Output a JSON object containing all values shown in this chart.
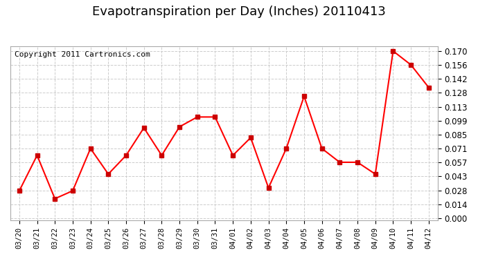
{
  "title": "Evapotranspiration per Day (Inches) 20110413",
  "copyright": "Copyright 2011 Cartronics.com",
  "dates": [
    "03/20",
    "03/21",
    "03/22",
    "03/23",
    "03/24",
    "03/25",
    "03/26",
    "03/27",
    "03/28",
    "03/29",
    "03/30",
    "03/31",
    "04/01",
    "04/02",
    "04/03",
    "04/04",
    "04/05",
    "04/06",
    "04/07",
    "04/08",
    "04/09",
    "04/10",
    "04/11",
    "04/12"
  ],
  "values": [
    0.028,
    0.064,
    0.02,
    0.028,
    0.071,
    0.045,
    0.064,
    0.092,
    0.064,
    0.093,
    0.103,
    0.103,
    0.064,
    0.082,
    0.031,
    0.071,
    0.124,
    0.071,
    0.057,
    0.057,
    0.045,
    0.17,
    0.156,
    0.133
  ],
  "yticks": [
    0.0,
    0.014,
    0.028,
    0.043,
    0.057,
    0.071,
    0.085,
    0.099,
    0.113,
    0.128,
    0.142,
    0.156,
    0.17
  ],
  "ylim": [
    0.0,
    0.17
  ],
  "line_color": "#ff0000",
  "marker_color": "#cc0000",
  "bg_color": "#ffffff",
  "grid_color": "#cccccc",
  "title_fontsize": 13,
  "copyright_fontsize": 8
}
